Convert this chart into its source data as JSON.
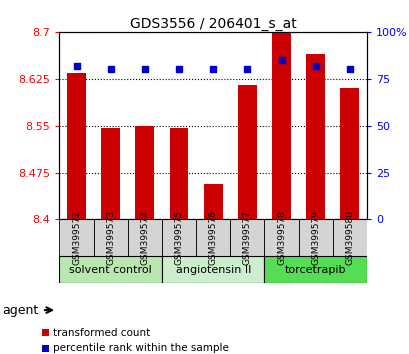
{
  "title": "GDS3556 / 206401_s_at",
  "samples": [
    "GSM399572",
    "GSM399573",
    "GSM399574",
    "GSM399575",
    "GSM399576",
    "GSM399577",
    "GSM399578",
    "GSM399579",
    "GSM399580"
  ],
  "red_values": [
    8.635,
    8.547,
    8.55,
    8.547,
    8.457,
    8.615,
    8.7,
    8.665,
    8.61
  ],
  "blue_values": [
    82,
    80,
    80,
    80,
    80,
    80,
    85,
    82,
    80
  ],
  "ylim_left": [
    8.4,
    8.7
  ],
  "ylim_right": [
    0,
    100
  ],
  "yticks_left": [
    8.4,
    8.475,
    8.55,
    8.625,
    8.7
  ],
  "yticks_right": [
    0,
    25,
    50,
    75,
    100
  ],
  "groups": [
    {
      "label": "solvent control",
      "samples": [
        0,
        1,
        2
      ],
      "color": "#b8e8b0"
    },
    {
      "label": "angiotensin II",
      "samples": [
        3,
        4,
        5
      ],
      "color": "#cceecc"
    },
    {
      "label": "torcetrapib",
      "samples": [
        6,
        7,
        8
      ],
      "color": "#55dd55"
    }
  ],
  "sample_box_color": "#d4d4d4",
  "bar_color": "#cc0000",
  "dot_color": "#0000cc",
  "background_color": "#ffffff",
  "agent_label": "agent",
  "legend_items": [
    {
      "label": "transformed count",
      "color": "#cc0000"
    },
    {
      "label": "percentile rank within the sample",
      "color": "#0000cc"
    }
  ]
}
